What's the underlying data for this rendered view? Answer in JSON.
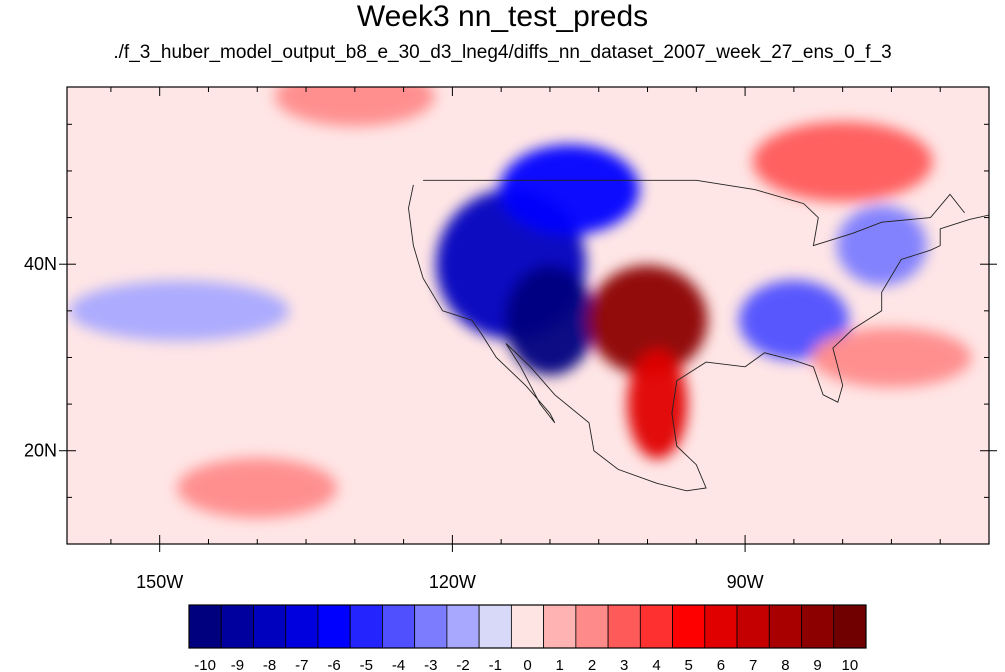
{
  "title": "Week3 nn_test_preds",
  "subtitle": "./f_3_huber_model_output_b8_e_30_d3_lneg4/diffs_nn_dataset_2007_week_27_ens_0_f_3",
  "chart_data": {
    "type": "heatmap",
    "projection": "cylindrical equidistant map of North America",
    "x_axis": {
      "ticks": [
        {
          "value": -150,
          "label": "150W"
        },
        {
          "value": -120,
          "label": "120W"
        },
        {
          "value": -90,
          "label": "90W"
        }
      ],
      "range": [
        -159.5,
        -65.0
      ]
    },
    "y_axis": {
      "ticks": [
        {
          "value": 40,
          "label": "40N"
        },
        {
          "value": 20,
          "label": "20N"
        }
      ],
      "range": [
        10.0,
        59.0
      ]
    },
    "colorbar": {
      "labels": [
        "-10",
        "-9",
        "-8",
        "-7",
        "-6",
        "-5",
        "-4",
        "-3",
        "-2",
        "-1",
        "0",
        "1",
        "2",
        "3",
        "4",
        "5",
        "6",
        "7",
        "8",
        "9",
        "10"
      ],
      "colors": [
        "#00007f",
        "#00009f",
        "#0000bf",
        "#0000df",
        "#0000ff",
        "#2424ff",
        "#5050ff",
        "#7c7cff",
        "#a8a8ff",
        "#d8d8f8",
        "#ffe4e4",
        "#ffb3b3",
        "#ff8a8a",
        "#ff5a5a",
        "#ff3030",
        "#ff0000",
        "#e00000",
        "#c40000",
        "#a80000",
        "#8c0000",
        "#700000"
      ]
    },
    "fields": [
      {
        "region": "western US / Great Basin",
        "lon": -114,
        "lat": 40,
        "value": -8
      },
      {
        "region": "Arizona / NW Mexico",
        "lon": -110,
        "lat": 34,
        "value": -10
      },
      {
        "region": "Northern Rockies / Canada",
        "lon": -108,
        "lat": 48,
        "value": -6
      },
      {
        "region": "Southern Plains",
        "lon": -100,
        "lat": 34,
        "value": 9
      },
      {
        "region": "Eastern Mexico",
        "lon": -99,
        "lat": 25,
        "value": 6
      },
      {
        "region": "Southeast US",
        "lon": -85,
        "lat": 34,
        "value": -4
      },
      {
        "region": "Northeast US",
        "lon": -76,
        "lat": 42,
        "value": -3
      },
      {
        "region": "North Central Pacific",
        "lon": -148,
        "lat": 35,
        "value": -2
      },
      {
        "region": "Eastern Canada",
        "lon": -80,
        "lat": 51,
        "value": 3
      },
      {
        "region": "Gulf of Alaska",
        "lon": -130,
        "lat": 58,
        "value": 2
      },
      {
        "region": "Subtropical Pacific",
        "lon": -140,
        "lat": 16,
        "value": 2
      },
      {
        "region": "Western Atlantic",
        "lon": -75,
        "lat": 30,
        "value": 2
      }
    ]
  }
}
